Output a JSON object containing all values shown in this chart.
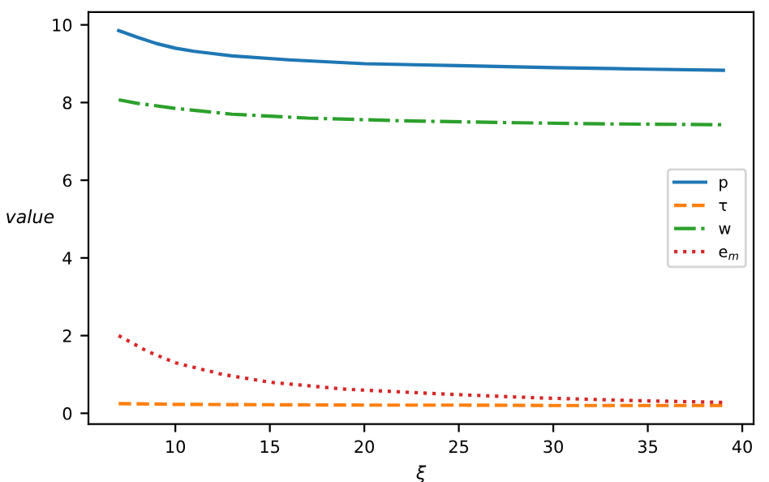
{
  "chart_data": {
    "type": "line",
    "xlabel": "ξ",
    "ylabel": "value",
    "xlim": [
      5.4,
      40.6
    ],
    "xticks": [
      10,
      15,
      20,
      25,
      30,
      35,
      40
    ],
    "ylim": [
      -0.28,
      10.33
    ],
    "yticks": [
      0,
      2,
      4,
      6,
      8,
      10
    ],
    "legend": "right",
    "grid": false,
    "marker": "none",
    "series": [
      {
        "name": "p",
        "color": "#1f77b4",
        "line_style": "solid",
        "x": [
          7,
          8,
          9,
          10,
          11,
          13,
          16,
          20,
          25,
          30,
          35,
          39
        ],
        "values": [
          9.85,
          9.68,
          9.52,
          9.4,
          9.32,
          9.2,
          9.1,
          9.0,
          8.95,
          8.9,
          8.86,
          8.83
        ]
      },
      {
        "name": "τ",
        "color": "#ff7f0e",
        "line_style": "dashed",
        "x": [
          7,
          10,
          15,
          20,
          25,
          30,
          35,
          39
        ],
        "values": [
          0.25,
          0.23,
          0.22,
          0.21,
          0.21,
          0.2,
          0.2,
          0.2
        ]
      },
      {
        "name": "w",
        "color": "#2ca02c",
        "line_style": "dashdot",
        "x": [
          7,
          8,
          10,
          13,
          17,
          22,
          28,
          33,
          39
        ],
        "values": [
          8.07,
          7.98,
          7.85,
          7.7,
          7.6,
          7.53,
          7.48,
          7.45,
          7.43
        ]
      },
      {
        "name": "e$_{m}$",
        "color": "#d62728",
        "line_style": "dotted",
        "x": [
          7,
          8.5,
          10,
          12.5,
          15,
          19,
          24,
          29,
          34,
          39
        ],
        "values": [
          2.0,
          1.6,
          1.3,
          1.0,
          0.8,
          0.62,
          0.5,
          0.4,
          0.33,
          0.28
        ]
      }
    ]
  }
}
